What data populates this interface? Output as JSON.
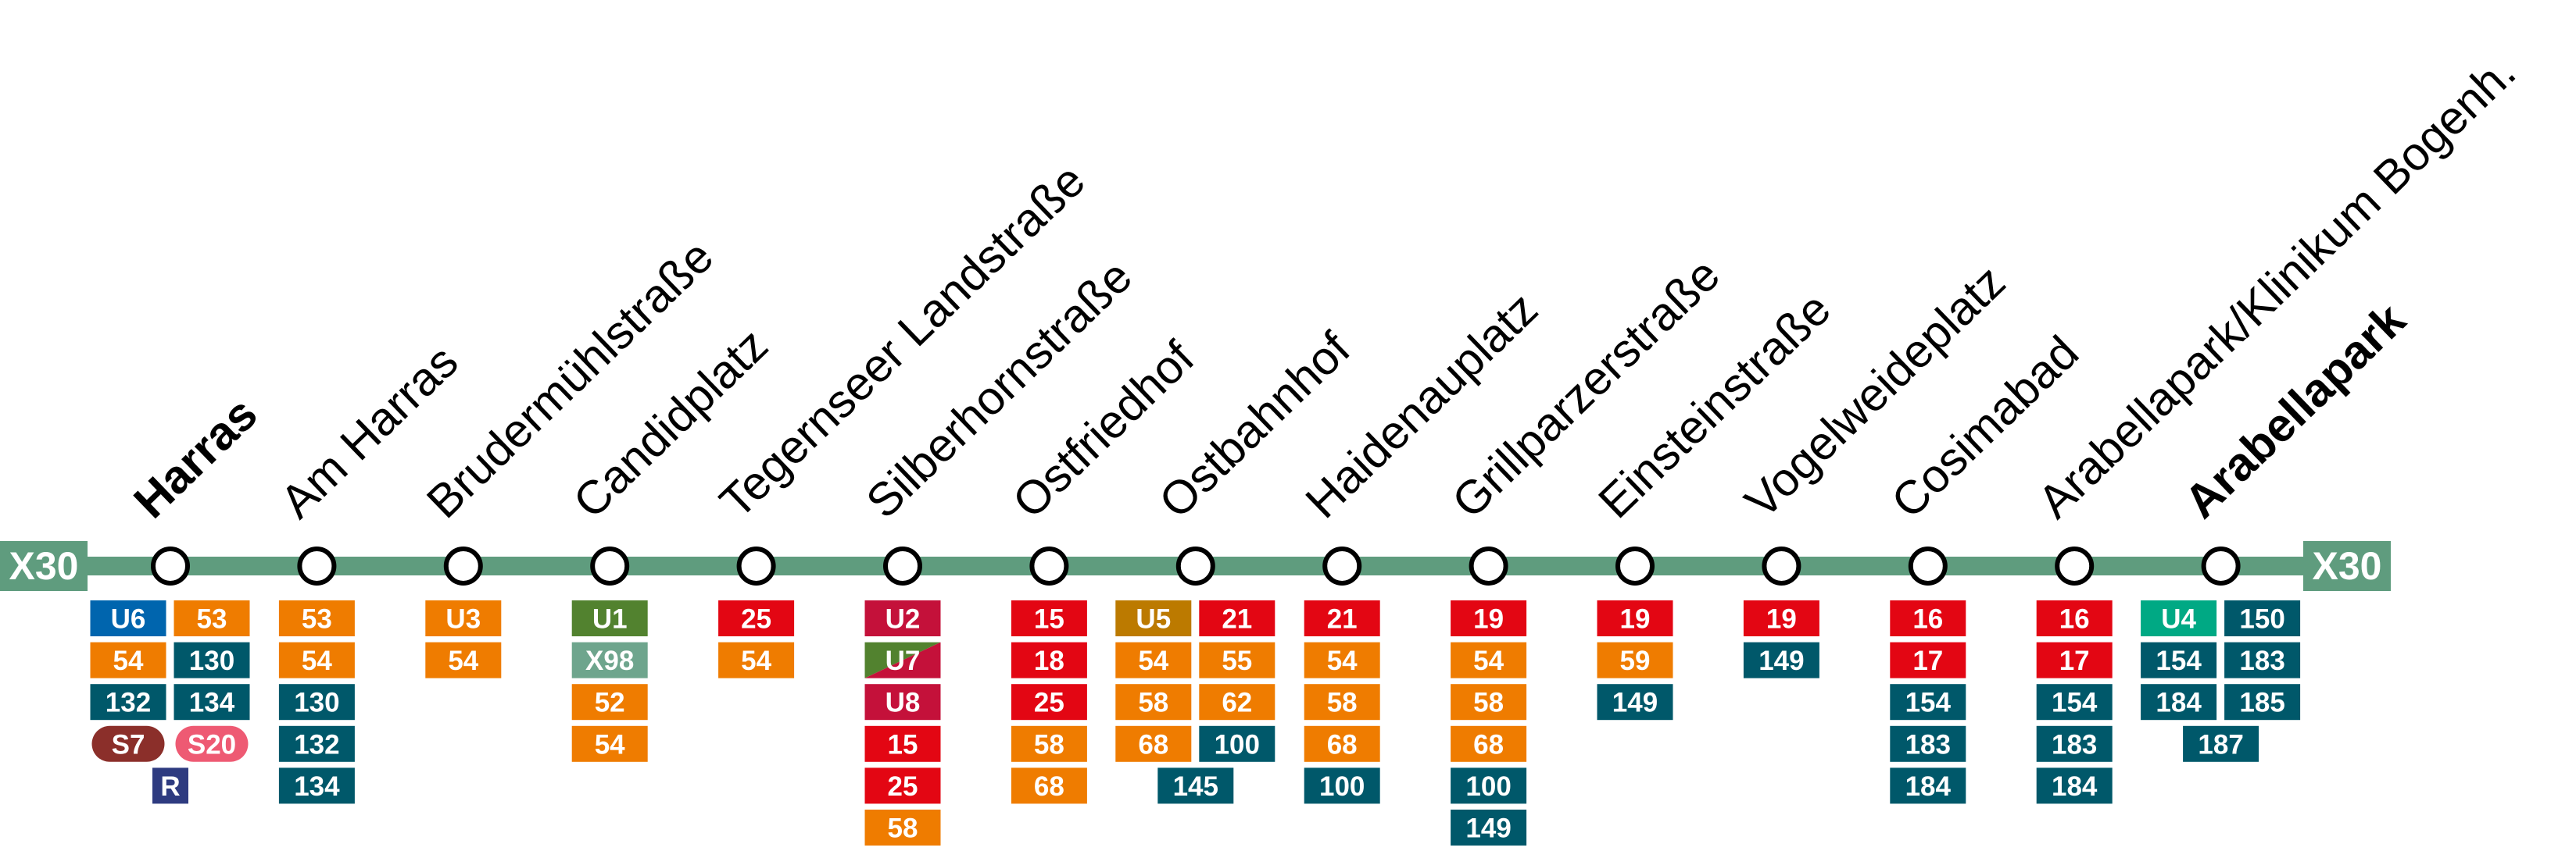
{
  "line": {
    "start_label": "X30",
    "end_label": "X30",
    "color": "#5f9c7e"
  },
  "stops": [
    {
      "name": "Harras",
      "bold": true,
      "rows": [
        [
          {
            "label": "U6",
            "color": "#0065ae"
          },
          {
            "label": "53",
            "color": "#ef7c00"
          }
        ],
        [
          {
            "label": "54",
            "color": "#ef7c00"
          },
          {
            "label": "130",
            "color": "#00586a"
          }
        ],
        [
          {
            "label": "132",
            "color": "#00586a"
          },
          {
            "label": "134",
            "color": "#00586a"
          }
        ],
        [
          {
            "label": "S7",
            "color": "#8b2f2a",
            "shape": "pill"
          },
          {
            "label": "S20",
            "color": "#ee5a73",
            "shape": "pill"
          }
        ],
        [
          {
            "label": "R",
            "color": "#2e3b80"
          }
        ]
      ]
    },
    {
      "name": "Am Harras",
      "rows": [
        [
          {
            "label": "53",
            "color": "#ef7c00"
          }
        ],
        [
          {
            "label": "54",
            "color": "#ef7c00"
          }
        ],
        [
          {
            "label": "130",
            "color": "#00586a"
          }
        ],
        [
          {
            "label": "132",
            "color": "#00586a"
          }
        ],
        [
          {
            "label": "134",
            "color": "#00586a"
          }
        ]
      ]
    },
    {
      "name": "Brudermühlstraße",
      "rows": [
        [
          {
            "label": "U3",
            "color": "#ef7c00"
          }
        ],
        [
          {
            "label": "54",
            "color": "#ef7c00"
          }
        ]
      ]
    },
    {
      "name": "Candidplatz",
      "rows": [
        [
          {
            "label": "U1",
            "color": "#52822f"
          }
        ],
        [
          {
            "label": "X98",
            "color": "#6ea58d"
          }
        ],
        [
          {
            "label": "52",
            "color": "#ef7c00"
          }
        ],
        [
          {
            "label": "54",
            "color": "#ef7c00"
          }
        ]
      ]
    },
    {
      "name": "Tegernseer Landstraße",
      "rows": [
        [
          {
            "label": "25",
            "color": "#e30613"
          }
        ],
        [
          {
            "label": "54",
            "color": "#ef7c00"
          }
        ]
      ]
    },
    {
      "name": "Silberhornstraße",
      "rows": [
        [
          {
            "label": "U2",
            "color": "#c4113a"
          }
        ],
        [
          {
            "label": "U7",
            "color": [
              "#52822f",
              "#c4113a"
            ]
          }
        ],
        [
          {
            "label": "U8",
            "color": "#c4113a"
          }
        ],
        [
          {
            "label": "15",
            "color": "#e30613"
          }
        ],
        [
          {
            "label": "25",
            "color": "#e30613"
          }
        ],
        [
          {
            "label": "58",
            "color": "#ef7c00"
          }
        ]
      ]
    },
    {
      "name": "Ostfriedhof",
      "rows": [
        [
          {
            "label": "15",
            "color": "#e30613"
          }
        ],
        [
          {
            "label": "18",
            "color": "#e30613"
          }
        ],
        [
          {
            "label": "25",
            "color": "#e30613"
          }
        ],
        [
          {
            "label": "58",
            "color": "#ef7c00"
          }
        ],
        [
          {
            "label": "68",
            "color": "#ef7c00"
          }
        ]
      ]
    },
    {
      "name": "Ostbahnhof",
      "rows": [
        [
          {
            "label": "U5",
            "color": "#bc7a00"
          },
          {
            "label": "21",
            "color": "#e30613"
          }
        ],
        [
          {
            "label": "54",
            "color": "#ef7c00"
          },
          {
            "label": "55",
            "color": "#ef7c00"
          }
        ],
        [
          {
            "label": "58",
            "color": "#ef7c00"
          },
          {
            "label": "62",
            "color": "#ef7c00"
          }
        ],
        [
          {
            "label": "68",
            "color": "#ef7c00"
          },
          {
            "label": "100",
            "color": "#00586a"
          }
        ],
        [
          {
            "label": "145",
            "color": "#00586a"
          }
        ]
      ]
    },
    {
      "name": "Haidenauplatz",
      "rows": [
        [
          {
            "label": "21",
            "color": "#e30613"
          }
        ],
        [
          {
            "label": "54",
            "color": "#ef7c00"
          }
        ],
        [
          {
            "label": "58",
            "color": "#ef7c00"
          }
        ],
        [
          {
            "label": "68",
            "color": "#ef7c00"
          }
        ],
        [
          {
            "label": "100",
            "color": "#00586a"
          }
        ]
      ]
    },
    {
      "name": "Grillparzerstraße",
      "rows": [
        [
          {
            "label": "19",
            "color": "#e30613"
          }
        ],
        [
          {
            "label": "54",
            "color": "#ef7c00"
          }
        ],
        [
          {
            "label": "58",
            "color": "#ef7c00"
          }
        ],
        [
          {
            "label": "68",
            "color": "#ef7c00"
          }
        ],
        [
          {
            "label": "100",
            "color": "#00586a"
          }
        ],
        [
          {
            "label": "149",
            "color": "#00586a"
          }
        ]
      ]
    },
    {
      "name": "Einsteinstraße",
      "rows": [
        [
          {
            "label": "19",
            "color": "#e30613"
          }
        ],
        [
          {
            "label": "59",
            "color": "#ef7c00"
          }
        ],
        [
          {
            "label": "149",
            "color": "#00586a"
          }
        ]
      ]
    },
    {
      "name": "Vogelweideplatz",
      "rows": [
        [
          {
            "label": "19",
            "color": "#e30613"
          }
        ],
        [
          {
            "label": "149",
            "color": "#00586a"
          }
        ]
      ]
    },
    {
      "name": "Cosimabad",
      "rows": [
        [
          {
            "label": "16",
            "color": "#e30613"
          }
        ],
        [
          {
            "label": "17",
            "color": "#e30613"
          }
        ],
        [
          {
            "label": "154",
            "color": "#00586a"
          }
        ],
        [
          {
            "label": "183",
            "color": "#00586a"
          }
        ],
        [
          {
            "label": "184",
            "color": "#00586a"
          }
        ]
      ]
    },
    {
      "name": "Arabellapark/Klinikum Bogenh.",
      "rows": [
        [
          {
            "label": "16",
            "color": "#e30613"
          }
        ],
        [
          {
            "label": "17",
            "color": "#e30613"
          }
        ],
        [
          {
            "label": "154",
            "color": "#00586a"
          }
        ],
        [
          {
            "label": "183",
            "color": "#00586a"
          }
        ],
        [
          {
            "label": "184",
            "color": "#00586a"
          }
        ]
      ]
    },
    {
      "name": "Arabellapark",
      "bold": true,
      "rows": [
        [
          {
            "label": "U4",
            "color": "#00a984"
          },
          {
            "label": "150",
            "color": "#00586a"
          }
        ],
        [
          {
            "label": "154",
            "color": "#00586a"
          },
          {
            "label": "183",
            "color": "#00586a"
          }
        ],
        [
          {
            "label": "184",
            "color": "#00586a"
          },
          {
            "label": "185",
            "color": "#00586a"
          }
        ],
        [
          {
            "label": "187",
            "color": "#00586a"
          }
        ]
      ]
    }
  ]
}
